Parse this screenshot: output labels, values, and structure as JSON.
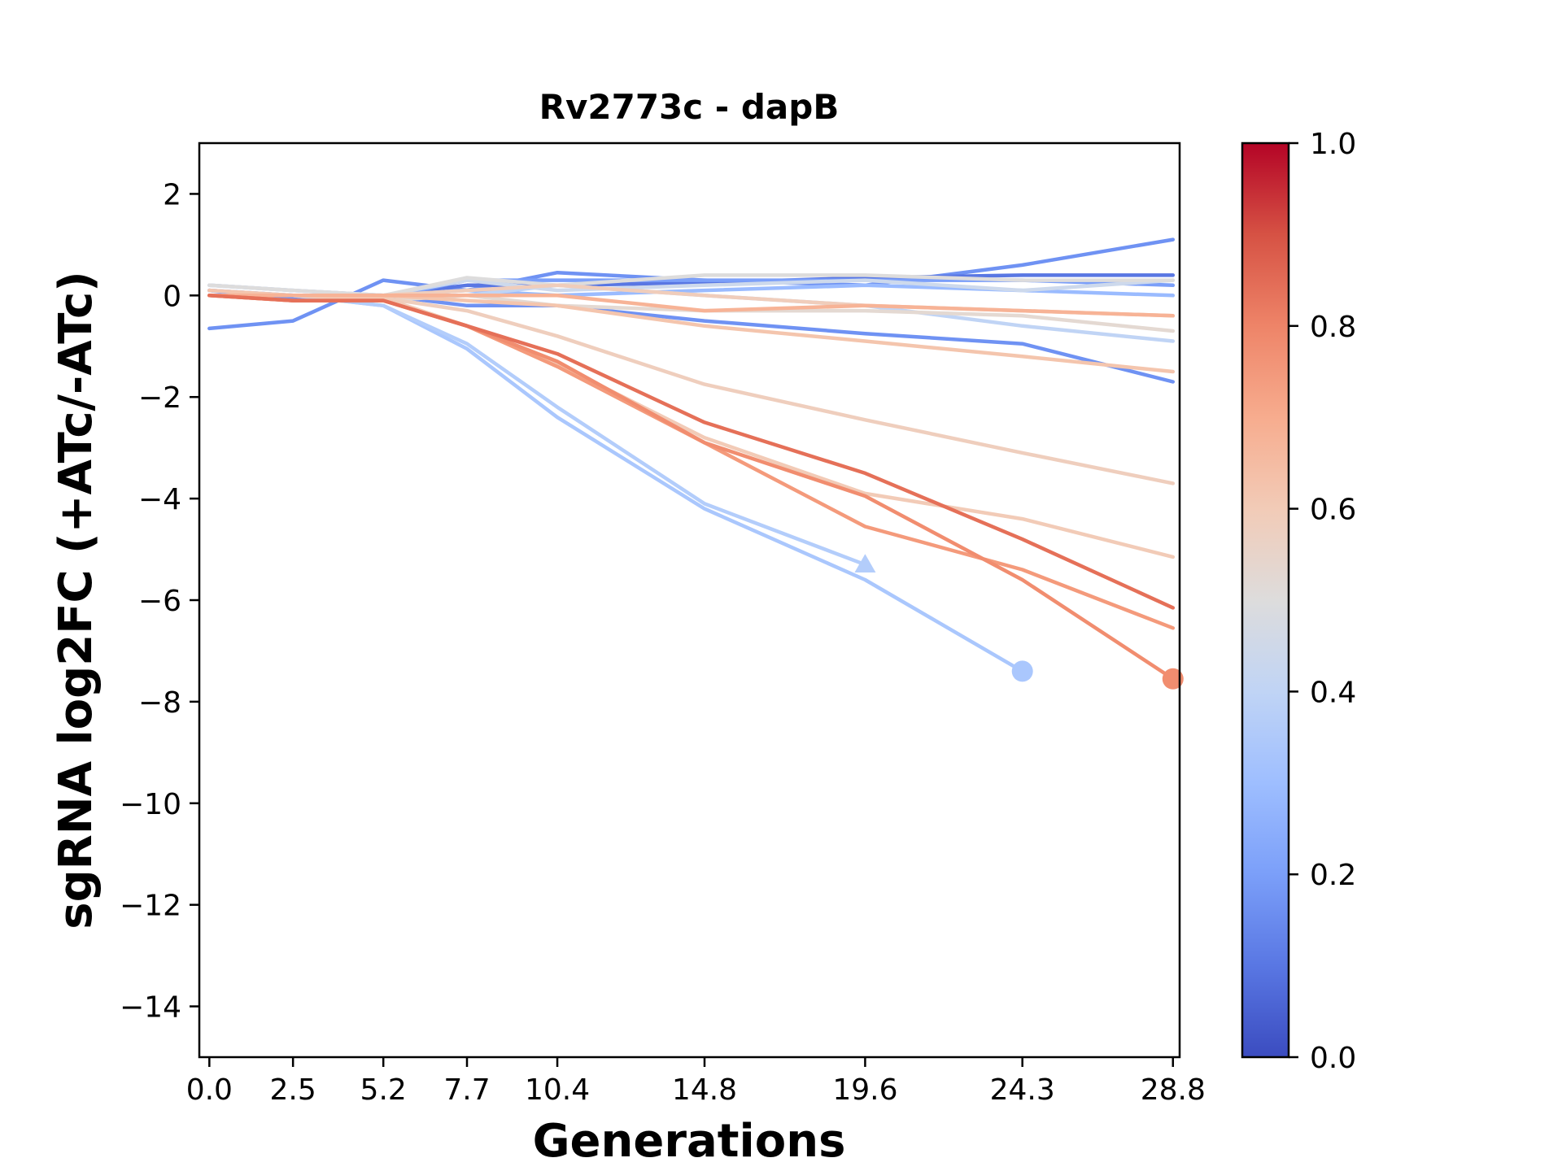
{
  "chart_data": {
    "type": "line",
    "title": "Rv2773c - dapB",
    "xlabel": "Generations",
    "ylabel": "sgRNA log2FC (+ATc/-ATc)",
    "x": [
      0.0,
      2.5,
      5.2,
      7.7,
      10.4,
      14.8,
      19.6,
      24.3,
      28.8
    ],
    "x_tick_labels": [
      "0.0",
      "2.5",
      "5.2",
      "7.7",
      "10.4",
      "14.8",
      "19.6",
      "24.3",
      "28.8"
    ],
    "xlim": [
      -0.3,
      29.0
    ],
    "ylim": [
      -15,
      3
    ],
    "y_ticks": [
      2,
      0,
      -2,
      -4,
      -6,
      -8,
      -10,
      -12,
      -14
    ],
    "y_tick_labels": [
      "2",
      "0",
      "−2",
      "−4",
      "−6",
      "−8",
      "−10",
      "−12",
      "−14"
    ],
    "grid": false,
    "colorbar": {
      "colormap": "coolwarm",
      "range": [
        0.0,
        1.0
      ],
      "ticks": [
        0.0,
        0.2,
        0.4,
        0.6,
        0.8,
        1.0
      ],
      "tick_labels": [
        "0.0",
        "0.2",
        "0.4",
        "0.6",
        "0.8",
        "1.0"
      ]
    },
    "series": [
      {
        "color": "#6f92f3",
        "values": [
          -0.65,
          -0.5,
          0.3,
          0.1,
          0.45,
          0.3,
          0.2,
          0.6,
          1.1
        ]
      },
      {
        "color": "#5977e3",
        "values": [
          0.1,
          0.0,
          0.0,
          0.2,
          0.2,
          0.25,
          0.35,
          0.4,
          0.4
        ]
      },
      {
        "color": "#7b9ff9",
        "values": [
          0.1,
          -0.1,
          -0.05,
          0.3,
          0.3,
          0.3,
          0.3,
          0.3,
          0.2
        ]
      },
      {
        "color": "#6f92f3",
        "values": [
          0.0,
          -0.05,
          0.0,
          -0.2,
          -0.2,
          -0.5,
          -0.75,
          -0.95,
          -1.7
        ]
      },
      {
        "color": "#9abbff",
        "values": [
          0.2,
          0.1,
          0.0,
          0.1,
          0.0,
          0.1,
          0.2,
          0.1,
          0.0
        ]
      },
      {
        "color": "#aac7fd",
        "values": [
          0.0,
          0.0,
          -0.2,
          -1.05,
          -2.4,
          -4.2,
          -5.6,
          -7.4,
          null
        ],
        "marker": "circle",
        "end_index": 7
      },
      {
        "color": "#b3cdfb",
        "values": [
          0.0,
          0.0,
          -0.2,
          -0.95,
          -2.2,
          -4.1,
          -5.3,
          null,
          null
        ],
        "marker": "triangle",
        "end_index": 6
      },
      {
        "color": "#c0d4f5",
        "values": [
          0.1,
          0.0,
          0.0,
          0.0,
          0.2,
          0.0,
          -0.2,
          -0.6,
          -0.9
        ]
      },
      {
        "color": "#cdd9ec",
        "values": [
          0.2,
          0.1,
          0.0,
          0.3,
          0.1,
          0.2,
          0.3,
          0.1,
          0.3
        ]
      },
      {
        "color": "#dddcdc",
        "values": [
          0.2,
          0.1,
          0.0,
          0.35,
          0.2,
          0.4,
          0.4,
          0.3,
          0.3
        ]
      },
      {
        "color": "#e4d9d2",
        "values": [
          0.0,
          0.0,
          -0.1,
          0.0,
          -0.2,
          -0.3,
          -0.3,
          -0.4,
          -0.7
        ]
      },
      {
        "color": "#f0cdbb",
        "values": [
          0.0,
          0.0,
          0.0,
          0.1,
          0.2,
          0.0,
          -0.2,
          -0.3,
          -0.4
        ]
      },
      {
        "color": "#efcebd",
        "values": [
          0.0,
          0.0,
          -0.05,
          -0.3,
          -0.8,
          -1.75,
          -2.45,
          -3.1,
          -3.7
        ]
      },
      {
        "color": "#f2cbb7",
        "values": [
          0.0,
          0.0,
          -0.05,
          -0.6,
          -1.35,
          -2.8,
          -3.9,
          -4.4,
          -5.15
        ]
      },
      {
        "color": "#f4c5ad",
        "values": [
          0.1,
          0.0,
          0.0,
          -0.1,
          -0.2,
          -0.6,
          -0.9,
          -1.2,
          -1.5
        ]
      },
      {
        "color": "#f7b396",
        "values": [
          0.0,
          0.0,
          0.0,
          0.0,
          0.0,
          -0.3,
          -0.2,
          -0.3,
          -0.4
        ]
      },
      {
        "color": "#f49a7b",
        "values": [
          0.0,
          -0.1,
          -0.1,
          -0.6,
          -1.4,
          -2.9,
          -4.55,
          -5.4,
          -6.55
        ]
      },
      {
        "color": "#f18d6f",
        "values": [
          0.0,
          -0.1,
          -0.1,
          -0.6,
          -1.3,
          -2.9,
          -3.95,
          -5.6,
          -7.55
        ],
        "marker": "circle",
        "end_index": 8
      },
      {
        "color": "#e57058",
        "values": [
          0.0,
          -0.1,
          -0.1,
          -0.6,
          -1.15,
          -2.5,
          -3.5,
          -4.8,
          -6.15
        ]
      }
    ]
  }
}
